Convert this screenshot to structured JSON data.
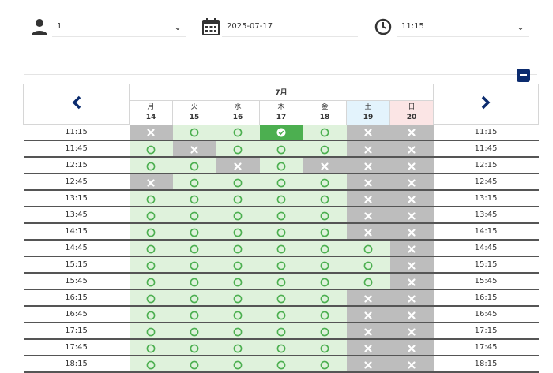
{
  "form": {
    "people": {
      "value": "1",
      "icon": "person-icon"
    },
    "date": {
      "value": "2025-07-17",
      "icon": "calendar-icon"
    },
    "time": {
      "value": "11:15",
      "icon": "clock-icon"
    }
  },
  "collapse": {
    "icon": "minus-icon"
  },
  "calendar": {
    "month": "7月",
    "prev_icon": "chevron-left-icon",
    "next_icon": "chevron-right-icon",
    "days": [
      {
        "weekday": "月",
        "date": "14",
        "kind": "weekday"
      },
      {
        "weekday": "火",
        "date": "15",
        "kind": "weekday"
      },
      {
        "weekday": "水",
        "date": "16",
        "kind": "weekday"
      },
      {
        "weekday": "木",
        "date": "17",
        "kind": "weekday"
      },
      {
        "weekday": "金",
        "date": "18",
        "kind": "weekday"
      },
      {
        "weekday": "土",
        "date": "19",
        "kind": "saturday"
      },
      {
        "weekday": "日",
        "date": "20",
        "kind": "sunday"
      }
    ],
    "rows": [
      {
        "time": "11:15",
        "slots": [
          "x",
          "o",
          "o",
          "s",
          "o",
          "x",
          "x"
        ]
      },
      {
        "time": "11:45",
        "slots": [
          "o",
          "x",
          "o",
          "o",
          "o",
          "x",
          "x"
        ]
      },
      {
        "time": "12:15",
        "slots": [
          "o",
          "o",
          "x",
          "o",
          "x",
          "x",
          "x"
        ]
      },
      {
        "time": "12:45",
        "slots": [
          "x",
          "o",
          "o",
          "o",
          "o",
          "x",
          "x"
        ]
      },
      {
        "time": "13:15",
        "slots": [
          "o",
          "o",
          "o",
          "o",
          "o",
          "x",
          "x"
        ]
      },
      {
        "time": "13:45",
        "slots": [
          "o",
          "o",
          "o",
          "o",
          "o",
          "x",
          "x"
        ]
      },
      {
        "time": "14:15",
        "slots": [
          "o",
          "o",
          "o",
          "o",
          "o",
          "x",
          "x"
        ]
      },
      {
        "time": "14:45",
        "slots": [
          "o",
          "o",
          "o",
          "o",
          "o",
          "o",
          "x"
        ]
      },
      {
        "time": "15:15",
        "slots": [
          "o",
          "o",
          "o",
          "o",
          "o",
          "o",
          "x"
        ]
      },
      {
        "time": "15:45",
        "slots": [
          "o",
          "o",
          "o",
          "o",
          "o",
          "o",
          "x"
        ]
      },
      {
        "time": "16:15",
        "slots": [
          "o",
          "o",
          "o",
          "o",
          "o",
          "x",
          "x"
        ]
      },
      {
        "time": "16:45",
        "slots": [
          "o",
          "o",
          "o",
          "o",
          "o",
          "x",
          "x"
        ]
      },
      {
        "time": "17:15",
        "slots": [
          "o",
          "o",
          "o",
          "o",
          "o",
          "x",
          "x"
        ]
      },
      {
        "time": "17:45",
        "slots": [
          "o",
          "o",
          "o",
          "o",
          "o",
          "x",
          "x"
        ]
      },
      {
        "time": "18:15",
        "slots": [
          "o",
          "o",
          "o",
          "o",
          "o",
          "x",
          "x"
        ]
      }
    ]
  },
  "colors": {
    "available_bg": "#dff2dc",
    "available_mark": "#4caf50",
    "unavailable_bg": "#bdbdbd",
    "selected_bg": "#4caf50",
    "navy": "#0b2b6e",
    "saturday_bg": "#e3f3fc",
    "sunday_bg": "#fbe5e5"
  }
}
